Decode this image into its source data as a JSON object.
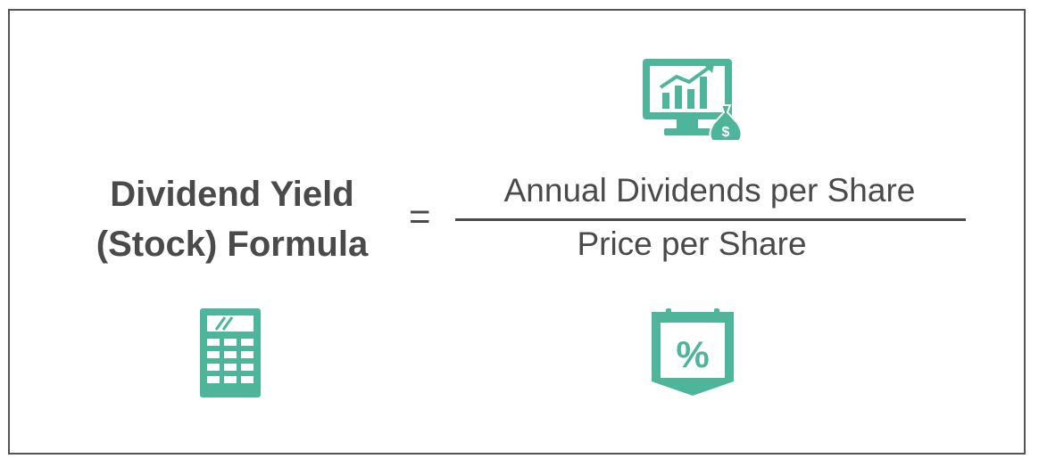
{
  "formula": {
    "lhs_line1": "Dividend Yield",
    "lhs_line2": "(Stock) Formula",
    "equals": "=",
    "numerator": "Annual Dividends per Share",
    "denominator": "Price per Share"
  },
  "icons": {
    "monitor": "monitor-chart-money-bag-icon",
    "calculator": "calculator-icon",
    "percent": "percent-tag-icon",
    "dollar_glyph": "$",
    "percent_glyph": "%"
  },
  "colors": {
    "accent": "#4eb59a",
    "text": "#4a4a4a",
    "border": "#555555"
  }
}
